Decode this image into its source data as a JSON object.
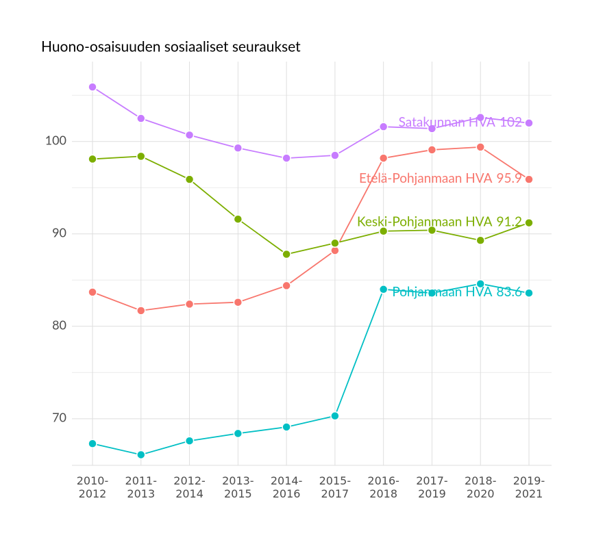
{
  "chart_data": {
    "type": "line",
    "title": "Huono-osaisuuden sosiaaliset seuraukset",
    "categories": [
      "2010-\n2012",
      "2011-\n2013",
      "2012-\n2014",
      "2013-\n2015",
      "2014-\n2016",
      "2015-\n2017",
      "2016-\n2018",
      "2017-\n2019",
      "2018-\n2020",
      "2019-\n2021"
    ],
    "series": [
      {
        "name": "Satakunnan HVA",
        "color": "#c77cff",
        "values": [
          105.9,
          102.5,
          100.7,
          99.3,
          98.2,
          98.5,
          101.6,
          101.4,
          102.6,
          102.0
        ],
        "end_label": "102"
      },
      {
        "name": "Etelä-Pohjanmaan HVA",
        "color": "#f8766d",
        "values": [
          83.7,
          81.7,
          82.4,
          82.6,
          84.4,
          88.2,
          98.2,
          99.1,
          99.4,
          95.9
        ],
        "end_label": "95.9"
      },
      {
        "name": "Keski-Pohjanmaan HVA",
        "color": "#7cae00",
        "values": [
          98.1,
          98.4,
          95.9,
          91.6,
          87.8,
          89.0,
          90.3,
          90.4,
          89.3,
          91.2
        ],
        "end_label": "91.2"
      },
      {
        "name": "Pohjanmaan HVA",
        "color": "#00bfc4",
        "values": [
          67.3,
          66.1,
          67.6,
          68.4,
          69.1,
          70.3,
          84.0,
          83.6,
          84.6,
          83.6
        ],
        "end_label": "83.6"
      }
    ],
    "ylim": [
      64.95,
      108.65
    ],
    "yticks": [
      70,
      80,
      90,
      100
    ],
    "yminor_ticks": [
      75,
      85,
      95,
      105
    ],
    "grid": true
  }
}
